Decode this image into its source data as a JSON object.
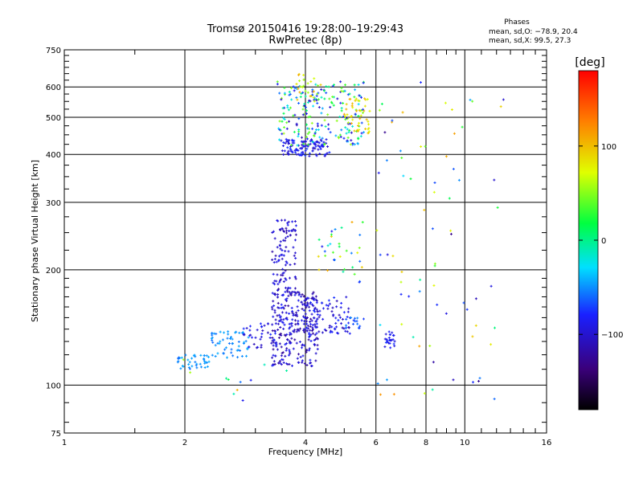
{
  "chart_data": {
    "type": "scatter",
    "title_line1": "Tromsø 20150416 19:28:00–19:29:43",
    "title_line2": "RwPretec (8p)",
    "xlabel": "Frequency [MHz]",
    "ylabel": "Stationary phase Virtual Height [km]",
    "x_scale": "log",
    "y_scale": "log",
    "xlim": [
      1,
      16
    ],
    "ylim": [
      75,
      750
    ],
    "x_ticks": [
      1,
      2,
      4,
      6,
      8,
      10,
      16
    ],
    "x_tick_labels": [
      "1",
      "2",
      "4",
      "6",
      "8",
      "10",
      "16"
    ],
    "y_ticks": [
      75,
      100,
      200,
      300,
      400,
      500,
      600,
      750
    ],
    "y_tick_labels": [
      "75",
      "100",
      "200",
      "300",
      "400",
      "500",
      "600",
      "750"
    ],
    "grid": true,
    "stats": {
      "heading": "Phases",
      "o_line": "mean, sd,O: −78.9, 20.4",
      "x_line": "mean, sd,X:  99.5, 27.3"
    },
    "colorbar": {
      "label": "[deg]",
      "range": [
        -180,
        180
      ],
      "ticks": [
        100,
        0,
        -100
      ],
      "tick_labels": [
        "100",
        "0",
        "−100"
      ],
      "colormap": "rainbow",
      "stops": [
        "#000000",
        "#2020ff",
        "#00ffff",
        "#00ff00",
        "#ffff00",
        "#ff0000"
      ]
    },
    "series": [
      {
        "clusters": [
          {
            "x": [
              1.9,
              2.3
            ],
            "y": [
              110,
              120
            ],
            "n": 40,
            "phase": [
              -60,
              -40
            ]
          },
          {
            "x": [
              2.3,
              2.9
            ],
            "y": [
              118,
              138
            ],
            "n": 55,
            "phase": [
              -60,
              -40
            ]
          },
          {
            "x": [
              2.8,
              3.4
            ],
            "y": [
              125,
              145
            ],
            "n": 40,
            "phase": [
              -110,
              -70
            ]
          },
          {
            "x": [
              3.3,
              4.3
            ],
            "y": [
              112,
              175
            ],
            "n": 260,
            "phase": [
              -125,
              -80
            ]
          },
          {
            "x": [
              3.3,
              3.8
            ],
            "y": [
              170,
              270
            ],
            "n": 110,
            "phase": [
              -120,
              -85
            ]
          },
          {
            "x": [
              4.0,
              5.2
            ],
            "y": [
              135,
              170
            ],
            "n": 90,
            "phase": [
              -115,
              -75
            ]
          },
          {
            "x": [
              5.0,
              5.6
            ],
            "y": [
              140,
              150
            ],
            "n": 15,
            "phase": [
              -80,
              -50
            ]
          },
          {
            "x": [
              6.3,
              6.7
            ],
            "y": [
              125,
              138
            ],
            "n": 25,
            "phase": [
              -100,
              -70
            ]
          },
          {
            "x": [
              3.5,
              4.6
            ],
            "y": [
              395,
              440
            ],
            "n": 110,
            "phase": [
              -110,
              -70
            ]
          },
          {
            "x": [
              3.4,
              5.6
            ],
            "y": [
              420,
              620
            ],
            "n": 220,
            "phase": [
              -115,
              60
            ]
          },
          {
            "x": [
              5.0,
              5.8
            ],
            "y": [
              450,
              560
            ],
            "n": 45,
            "phase": [
              70,
              110
            ]
          },
          {
            "x": [
              3.8,
              4.4
            ],
            "y": [
              540,
              650
            ],
            "n": 25,
            "phase": [
              50,
              110
            ]
          },
          {
            "x": [
              6.0,
              12.5
            ],
            "y": [
              90,
              640
            ],
            "n": 75,
            "phase": [
              -130,
              120
            ]
          },
          {
            "x": [
              4.3,
              5.6
            ],
            "y": [
              180,
              270
            ],
            "n": 35,
            "phase": [
              -90,
              110
            ]
          },
          {
            "x": [
              1.9,
              3.6
            ],
            "y": [
              88,
              120
            ],
            "n": 12,
            "phase": [
              -100,
              110
            ]
          }
        ]
      }
    ]
  }
}
